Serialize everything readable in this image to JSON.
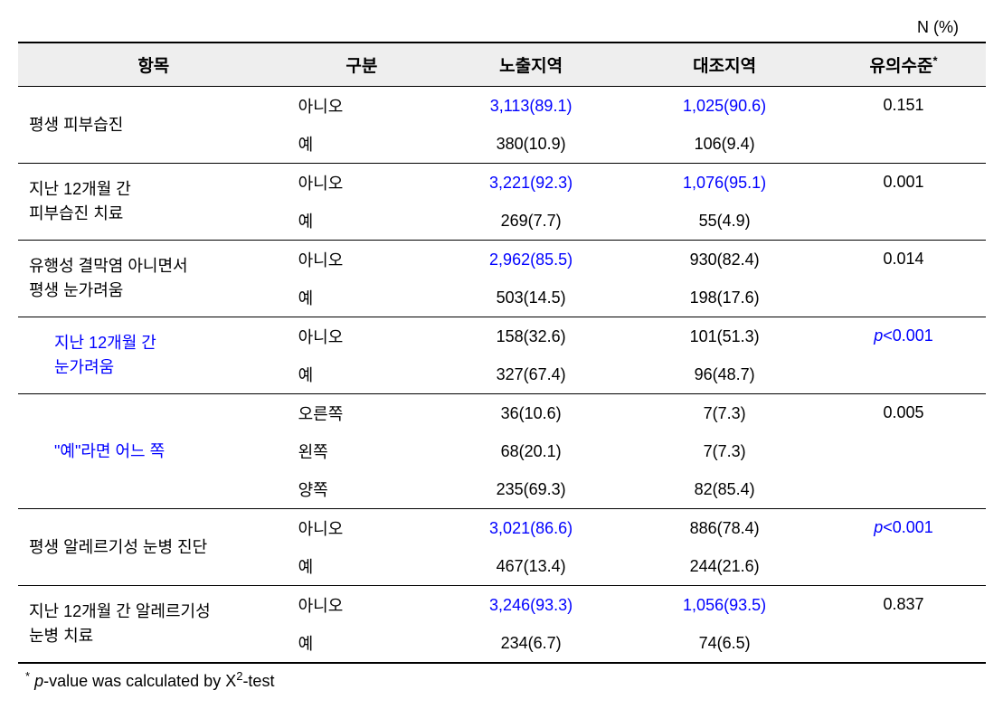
{
  "top_label": "N (%)",
  "headers": {
    "item": "항목",
    "gubun": "구분",
    "exposed": "노출지역",
    "control": "대조지역",
    "sig": "유의수준",
    "sig_sup": "*"
  },
  "rows": [
    {
      "item": "평생 피부습진",
      "sub": false,
      "rows": [
        {
          "g": "아니오",
          "e": "3,113(89.1)",
          "e_blue": true,
          "c": "1,025(90.6)",
          "c_blue": true
        },
        {
          "g": "예",
          "e": "380(10.9)",
          "e_blue": false,
          "c": "106(9.4)",
          "c_blue": false
        }
      ],
      "sig": "0.151",
      "sig_blue": false,
      "border": true
    },
    {
      "item": "지난 12개월 간\n피부습진 치료",
      "sub": false,
      "rows": [
        {
          "g": "아니오",
          "e": "3,221(92.3)",
          "e_blue": true,
          "c": "1,076(95.1)",
          "c_blue": true
        },
        {
          "g": "예",
          "e": "269(7.7)",
          "e_blue": false,
          "c": "55(4.9)",
          "c_blue": false
        }
      ],
      "sig": "0.001",
      "sig_blue": false,
      "border": true
    },
    {
      "item": "유행성 결막염 아니면서\n평생 눈가려움",
      "sub": false,
      "rows": [
        {
          "g": "아니오",
          "e": "2,962(85.5)",
          "e_blue": true,
          "c": "930(82.4)",
          "c_blue": false
        },
        {
          "g": "예",
          "e": "503(14.5)",
          "e_blue": false,
          "c": "198(17.6)",
          "c_blue": false
        }
      ],
      "sig": "0.014",
      "sig_blue": false,
      "border": true
    },
    {
      "item": "지난 12개월 간\n눈가려움",
      "sub": true,
      "item_blue": true,
      "rows": [
        {
          "g": "아니오",
          "e": "158(32.6)",
          "e_blue": false,
          "c": "101(51.3)",
          "c_blue": false
        },
        {
          "g": "예",
          "e": "327(67.4)",
          "e_blue": false,
          "c": "96(48.7)",
          "c_blue": false
        }
      ],
      "sig": "p<0.001",
      "sig_blue": true,
      "sig_italic_p": true,
      "border": true
    },
    {
      "item": "\"예\"라면 어느 쪽",
      "sub": true,
      "item_blue": true,
      "rows": [
        {
          "g": "오른쪽",
          "e": "36(10.6)",
          "e_blue": false,
          "c": "7(7.3)",
          "c_blue": false
        },
        {
          "g": "왼쪽",
          "e": "68(20.1)",
          "e_blue": false,
          "c": "7(7.3)",
          "c_blue": false
        },
        {
          "g": "양쪽",
          "e": "235(69.3)",
          "e_blue": false,
          "c": "82(85.4)",
          "c_blue": false
        }
      ],
      "sig": "0.005",
      "sig_blue": false,
      "border": true
    },
    {
      "item": "평생 알레르기성 눈병 진단",
      "sub": false,
      "rows": [
        {
          "g": "아니오",
          "e": "3,021(86.6)",
          "e_blue": true,
          "c": "886(78.4)",
          "c_blue": false
        },
        {
          "g": "예",
          "e": "467(13.4)",
          "e_blue": false,
          "c": "244(21.6)",
          "c_blue": false
        }
      ],
      "sig": "p<0.001",
      "sig_blue": true,
      "sig_italic_p": true,
      "border": true
    },
    {
      "item": "지난 12개월 간 알레르기성\n눈병 치료",
      "sub": false,
      "rows": [
        {
          "g": "아니오",
          "e": "3,246(93.3)",
          "e_blue": true,
          "c": "1,056(93.5)",
          "c_blue": true
        },
        {
          "g": "예",
          "e": "234(6.7)",
          "e_blue": false,
          "c": "74(6.5)",
          "c_blue": false
        }
      ],
      "sig": "0.837",
      "sig_blue": false,
      "border": false
    }
  ],
  "footnote": {
    "sup": "*",
    "prefix_italic": "p",
    "text": "-value was calculated by X",
    "sup2": "2",
    "suffix": "-test"
  },
  "colors": {
    "blue": "#0000ff",
    "black": "#000000",
    "header_bg": "#eeeeee",
    "background": "#ffffff"
  },
  "fonts": {
    "body_size": 18,
    "header_size": 19,
    "sup_size": 13
  }
}
